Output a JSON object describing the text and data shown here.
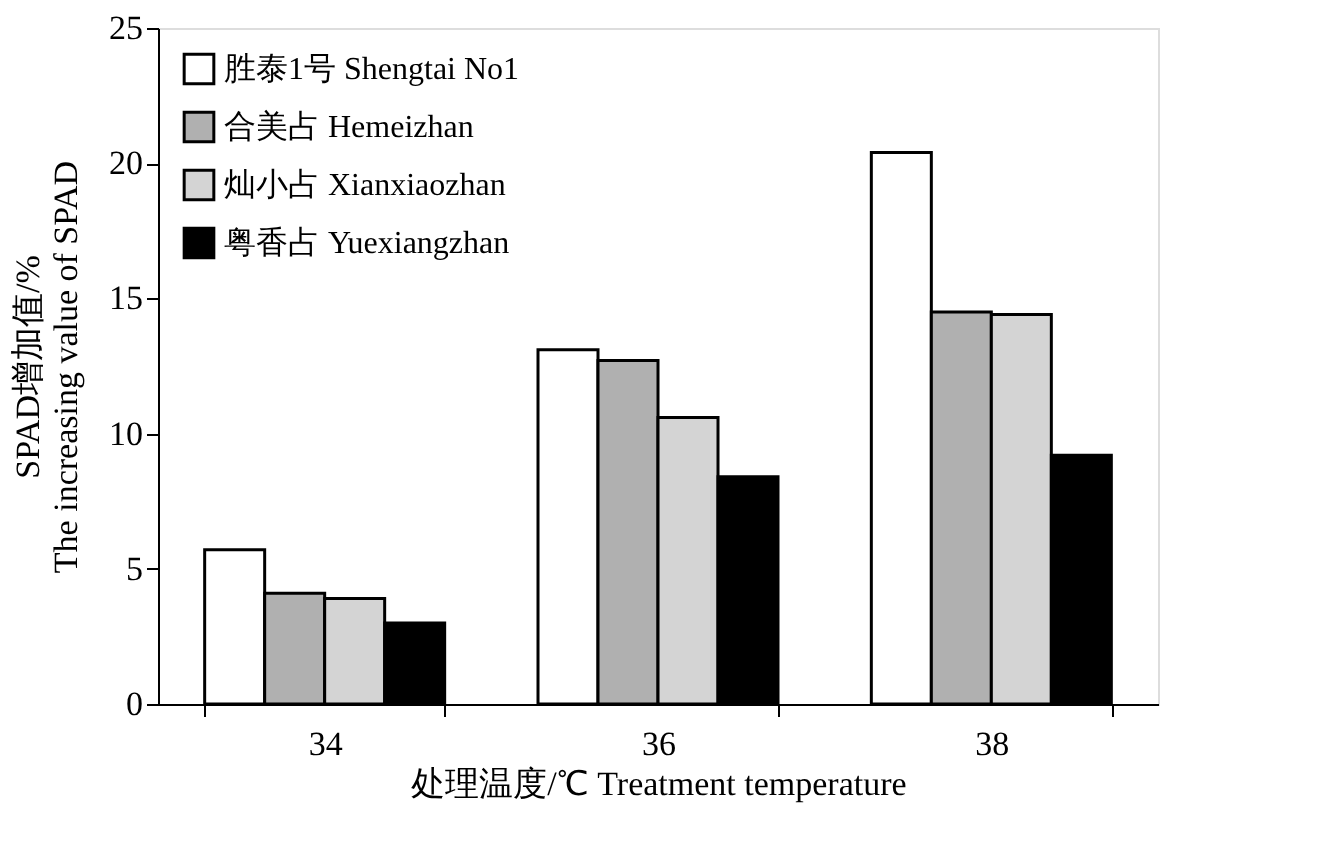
{
  "chart_data": {
    "type": "bar",
    "categories": [
      "34",
      "36",
      "38"
    ],
    "xlabel": "处理温度/℃  Treatment temperature",
    "ylabel": "SPAD增加值/%\nThe increasing value of SPAD",
    "ylim": [
      0,
      25
    ],
    "yticks": [
      0,
      5,
      10,
      15,
      20,
      25
    ],
    "legend": "top left",
    "grid": false,
    "series": [
      {
        "name": "胜泰1号  Shengtai No1",
        "color": "#ffffff",
        "values": [
          5.7,
          13.1,
          20.4
        ]
      },
      {
        "name": "合美占  Hemeizhan",
        "color": "#b0b0b0",
        "values": [
          4.1,
          12.7,
          14.5
        ]
      },
      {
        "name": "灿小占  Xianxiaozhan",
        "color": "#d4d4d4",
        "values": [
          3.9,
          10.6,
          14.4
        ]
      },
      {
        "name": "粤香占  Yuexiangzhan",
        "color": "#000000",
        "values": [
          3.0,
          8.4,
          9.2
        ]
      }
    ]
  }
}
